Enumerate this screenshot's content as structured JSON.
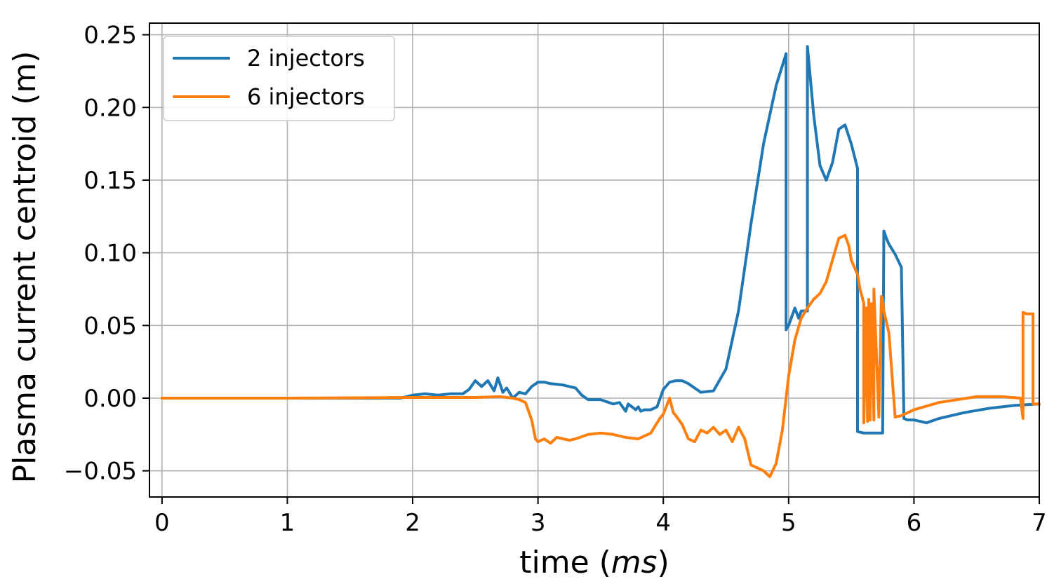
{
  "chart_data": {
    "type": "line",
    "xlabel_prefix": "time (",
    "xlabel_unit": "ms",
    "xlabel_suffix": ")",
    "ylabel": "Plasma current centroid (m)",
    "xlim": [
      -0.1,
      7
    ],
    "ylim": [
      -0.068,
      0.258
    ],
    "x_ticks": [
      0,
      1,
      2,
      3,
      4,
      5,
      6,
      7
    ],
    "x_tick_labels": [
      "0",
      "1",
      "2",
      "3",
      "4",
      "5",
      "6",
      "7"
    ],
    "y_ticks": [
      -0.05,
      0,
      0.05,
      0.1,
      0.15,
      0.2,
      0.25
    ],
    "y_tick_labels": [
      "−0.05",
      "0.00",
      "0.05",
      "0.10",
      "0.15",
      "0.20",
      "0.25"
    ],
    "grid": true,
    "legend_position": "top-left",
    "series": [
      {
        "name": "2 injectors",
        "color": "#1f77b4",
        "x": [
          0,
          1.0,
          1.9,
          2.0,
          2.1,
          2.2,
          2.3,
          2.4,
          2.45,
          2.5,
          2.55,
          2.6,
          2.65,
          2.68,
          2.72,
          2.75,
          2.8,
          2.85,
          2.9,
          2.95,
          3.0,
          3.05,
          3.1,
          3.2,
          3.3,
          3.35,
          3.4,
          3.45,
          3.5,
          3.6,
          3.65,
          3.7,
          3.72,
          3.75,
          3.78,
          3.8,
          3.82,
          3.85,
          3.9,
          3.95,
          4.0,
          4.05,
          4.1,
          4.15,
          4.2,
          4.3,
          4.4,
          4.5,
          4.6,
          4.7,
          4.8,
          4.9,
          4.98,
          4.98,
          5.0,
          5.05,
          5.08,
          5.1,
          5.15,
          5.15,
          5.2,
          5.25,
          5.3,
          5.35,
          5.4,
          5.45,
          5.5,
          5.55,
          5.55,
          5.6,
          5.65,
          5.7,
          5.75,
          5.76,
          5.78,
          5.8,
          5.85,
          5.9,
          5.92,
          5.95,
          6.0,
          6.1,
          6.2,
          6.4,
          6.6,
          6.8,
          7.0
        ],
        "y": [
          0,
          0,
          0,
          0.002,
          0.003,
          0.002,
          0.003,
          0.003,
          0.006,
          0.012,
          0.008,
          0.012,
          0.005,
          0.014,
          0.004,
          0.007,
          0.0,
          0.004,
          0.003,
          0.008,
          0.011,
          0.011,
          0.01,
          0.009,
          0.007,
          0.002,
          -0.001,
          -0.001,
          -0.001,
          -0.004,
          -0.003,
          -0.009,
          -0.004,
          -0.006,
          -0.008,
          -0.006,
          -0.009,
          -0.008,
          -0.008,
          -0.006,
          0.006,
          0.011,
          0.012,
          0.012,
          0.01,
          0.004,
          0.005,
          0.02,
          0.06,
          0.12,
          0.175,
          0.215,
          0.237,
          0.047,
          0.05,
          0.062,
          0.055,
          0.06,
          0.06,
          0.242,
          0.195,
          0.16,
          0.15,
          0.162,
          0.185,
          0.188,
          0.175,
          0.158,
          -0.023,
          -0.024,
          -0.024,
          -0.024,
          -0.024,
          0.115,
          0.11,
          0.106,
          0.099,
          0.09,
          -0.014,
          -0.015,
          -0.015,
          -0.017,
          -0.014,
          -0.01,
          -0.007,
          -0.005,
          -0.004
        ]
      },
      {
        "name": "6 injectors",
        "color": "#ff7f0e",
        "x": [
          0,
          1.0,
          2.0,
          2.5,
          2.7,
          2.8,
          2.85,
          2.9,
          2.95,
          2.98,
          3.0,
          3.05,
          3.1,
          3.15,
          3.2,
          3.25,
          3.3,
          3.4,
          3.5,
          3.6,
          3.7,
          3.8,
          3.9,
          3.95,
          3.98,
          4.0,
          4.05,
          4.08,
          4.1,
          4.15,
          4.2,
          4.25,
          4.3,
          4.35,
          4.4,
          4.45,
          4.5,
          4.55,
          4.6,
          4.65,
          4.7,
          4.75,
          4.8,
          4.85,
          4.9,
          4.95,
          5.0,
          5.05,
          5.1,
          5.15,
          5.2,
          5.25,
          5.3,
          5.35,
          5.4,
          5.45,
          5.48,
          5.5,
          5.55,
          5.57,
          5.6,
          5.6,
          5.62,
          5.63,
          5.64,
          5.65,
          5.66,
          5.68,
          5.68,
          5.72,
          5.74,
          5.75,
          5.76,
          5.8,
          5.85,
          5.85,
          5.9,
          6.0,
          6.2,
          6.5,
          6.7,
          6.85,
          6.87,
          6.87,
          6.9,
          6.92,
          6.95,
          6.95,
          7.0
        ],
        "y": [
          0,
          0,
          0.0005,
          0.0005,
          0.001,
          0.0,
          -0.001,
          -0.003,
          -0.015,
          -0.028,
          -0.03,
          -0.028,
          -0.031,
          -0.027,
          -0.028,
          -0.029,
          -0.028,
          -0.025,
          -0.024,
          -0.025,
          -0.027,
          -0.028,
          -0.024,
          -0.017,
          -0.013,
          -0.011,
          0.0,
          -0.01,
          -0.012,
          -0.018,
          -0.028,
          -0.03,
          -0.022,
          -0.024,
          -0.02,
          -0.025,
          -0.022,
          -0.03,
          -0.02,
          -0.028,
          -0.046,
          -0.048,
          -0.05,
          -0.054,
          -0.045,
          -0.022,
          0.015,
          0.04,
          0.055,
          0.062,
          0.068,
          0.072,
          0.08,
          0.095,
          0.11,
          0.112,
          0.105,
          0.095,
          0.085,
          0.075,
          0.065,
          -0.017,
          0.062,
          -0.016,
          0.068,
          -0.015,
          0.065,
          -0.015,
          0.075,
          -0.013,
          0.07,
          0.068,
          0.06,
          0.045,
          -0.013,
          -0.013,
          -0.012,
          -0.008,
          -0.003,
          0.001,
          0.001,
          0.0,
          -0.014,
          0.059,
          0.058,
          0.058,
          0.058,
          -0.004,
          -0.004
        ]
      }
    ]
  }
}
